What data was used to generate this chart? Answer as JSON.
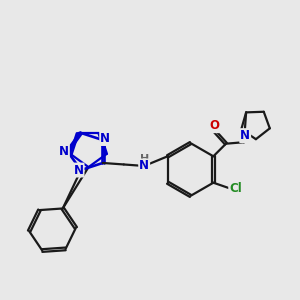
{
  "bg_color": "#e8e8e8",
  "bond_color": "#1a1a1a",
  "bond_width": 1.6,
  "atom_colors": {
    "N_blue": "#0000cc",
    "O_red": "#cc0000",
    "Cl_green": "#228B22",
    "H_gray": "#666666",
    "C": "#1a1a1a"
  },
  "xlim": [
    0,
    10
  ],
  "ylim": [
    0,
    10
  ]
}
